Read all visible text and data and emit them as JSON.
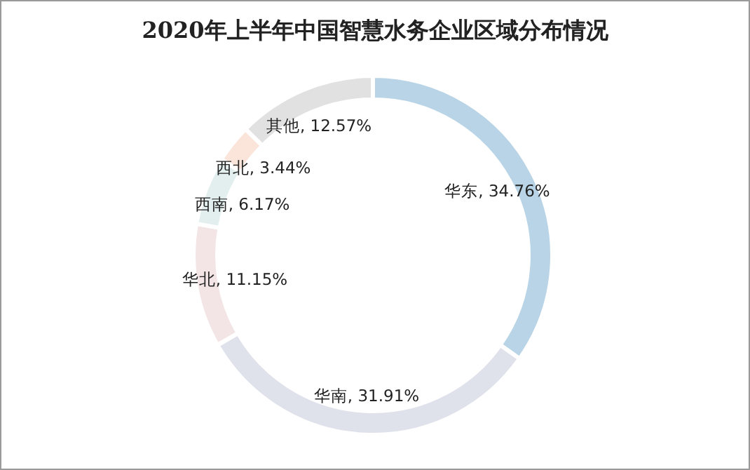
{
  "chart_data": {
    "type": "donut",
    "title": "2020年上半年中国智慧水务企业区域分布情况",
    "categories": [
      "华东",
      "华南",
      "华北",
      "西南",
      "西北",
      "其他"
    ],
    "values": [
      34.76,
      31.91,
      11.15,
      6.17,
      3.44,
      12.57
    ],
    "value_labels": [
      "34.76%",
      "31.91%",
      "11.15%",
      "6.17%",
      "3.44%",
      "12.57%"
    ],
    "colors": [
      "#b8d4e6",
      "#e0e2eb",
      "#f3e5e5",
      "#e2efee",
      "#fbe4d9",
      "#e1e1e1"
    ]
  }
}
